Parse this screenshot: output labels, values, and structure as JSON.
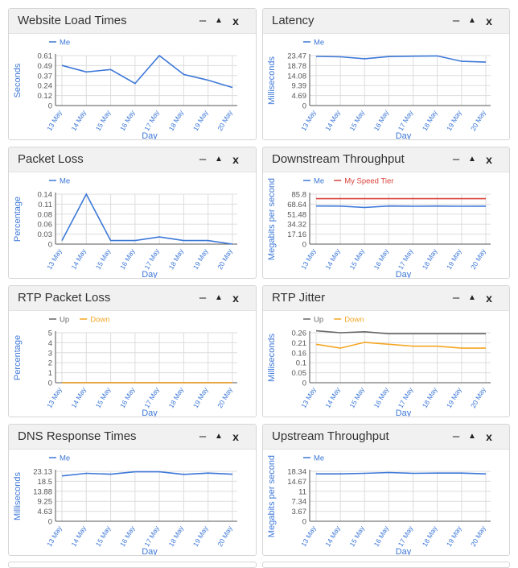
{
  "controls": {
    "minimize": "–",
    "expand": "▲",
    "close": "x"
  },
  "colors": {
    "blue": "#3d78d8",
    "red": "#d9433b",
    "gray": "#666666",
    "orange": "#f5a623",
    "grid": "#dddddd",
    "axis": "#555555",
    "label": "#3d78d8"
  },
  "panels": [
    {
      "id": "website-load-times",
      "title": "Website Load Times",
      "chart_data": {
        "type": "line",
        "title": "Website Load Times",
        "xlabel": "Day",
        "ylabel": "Seconds",
        "categories": [
          "13 May",
          "14 May",
          "15 May",
          "16 May",
          "17 May",
          "18 May",
          "19 May",
          "20 May"
        ],
        "yticks": [
          "0",
          "0.12",
          "0.24",
          "0.37",
          "0.49",
          "0.61"
        ],
        "ylim": [
          0,
          0.61
        ],
        "series": [
          {
            "name": "Me",
            "color": "#3d78d8",
            "values": [
              0.49,
              0.41,
              0.44,
              0.27,
              0.61,
              0.38,
              0.31,
              0.22
            ]
          }
        ]
      }
    },
    {
      "id": "latency",
      "title": "Latency",
      "chart_data": {
        "type": "line",
        "title": "Latency",
        "xlabel": "Day",
        "ylabel": "Milliseconds",
        "categories": [
          "13 May",
          "14 May",
          "15 May",
          "16 May",
          "17 May",
          "18 May",
          "19 May",
          "20 May"
        ],
        "yticks": [
          "0",
          "4.69",
          "9.39",
          "14.08",
          "18.78",
          "23.47"
        ],
        "ylim": [
          0,
          23.47
        ],
        "series": [
          {
            "name": "Me",
            "color": "#3d78d8",
            "values": [
              23.1,
              22.9,
              22.0,
              23.0,
              23.2,
              23.3,
              20.8,
              20.4
            ]
          }
        ]
      }
    },
    {
      "id": "packet-loss",
      "title": "Packet Loss",
      "chart_data": {
        "type": "line",
        "title": "Packet Loss",
        "xlabel": "Day",
        "ylabel": "Percentage",
        "categories": [
          "13 May",
          "14 May",
          "15 May",
          "16 May",
          "17 May",
          "18 May",
          "19 May",
          "20 May"
        ],
        "yticks": [
          "0",
          "0.03",
          "0.06",
          "0.08",
          "0.11",
          "0.14"
        ],
        "ylim": [
          0,
          0.14
        ],
        "series": [
          {
            "name": "Me",
            "color": "#3d78d8",
            "values": [
              0.01,
              0.14,
              0.01,
              0.01,
              0.02,
              0.01,
              0.01,
              0.0
            ]
          }
        ]
      }
    },
    {
      "id": "downstream-throughput",
      "title": "Downstream Throughput",
      "chart_data": {
        "type": "line",
        "title": "Downstream Throughput",
        "xlabel": "Day",
        "ylabel": "Megabits per second",
        "categories": [
          "13 May",
          "14 May",
          "15 May",
          "16 May",
          "17 May",
          "18 May",
          "19 May",
          "20 May"
        ],
        "yticks": [
          "0",
          "17.16",
          "34.32",
          "51.48",
          "68.64",
          "85.8"
        ],
        "ylim": [
          0,
          85.8
        ],
        "series": [
          {
            "name": "Me",
            "color": "#3d78d8",
            "values": [
              65.5,
              65.3,
              63.0,
              65.5,
              65.0,
              65.3,
              65.0,
              65.2
            ]
          },
          {
            "name": "My Speed Tier",
            "color": "#d9433b",
            "values": [
              78,
              78,
              78,
              78,
              78,
              78,
              78,
              78
            ]
          }
        ]
      }
    },
    {
      "id": "rtp-packet-loss",
      "title": "RTP Packet Loss",
      "chart_data": {
        "type": "line",
        "title": "RTP Packet Loss",
        "xlabel": "Day",
        "ylabel": "Percentage",
        "categories": [
          "13 May",
          "14 May",
          "15 May",
          "16 May",
          "17 May",
          "18 May",
          "19 May",
          "20 May"
        ],
        "yticks": [
          "0",
          "1",
          "2",
          "3",
          "4",
          "5"
        ],
        "ylim": [
          0,
          5
        ],
        "series": [
          {
            "name": "Up",
            "color": "#666666",
            "values": [
              0,
              0,
              0,
              0,
              0,
              0,
              0,
              0
            ]
          },
          {
            "name": "Down",
            "color": "#f5a623",
            "values": [
              0,
              0,
              0,
              0,
              0,
              0,
              0,
              0
            ]
          }
        ]
      }
    },
    {
      "id": "rtp-jitter",
      "title": "RTP Jitter",
      "chart_data": {
        "type": "line",
        "title": "RTP Jitter",
        "xlabel": "Day",
        "ylabel": "Milliseconds",
        "categories": [
          "13 May",
          "14 May",
          "15 May",
          "16 May",
          "17 May",
          "18 May",
          "19 May",
          "20 May"
        ],
        "yticks": [
          "0",
          "0.05",
          "0.1",
          "0.16",
          "0.21",
          "0.26"
        ],
        "ylim": [
          0,
          0.26
        ],
        "series": [
          {
            "name": "Up",
            "color": "#666666",
            "values": [
              0.27,
              0.26,
              0.265,
              0.255,
              0.255,
              0.255,
              0.255,
              0.255
            ]
          },
          {
            "name": "Down",
            "color": "#f5a623",
            "values": [
              0.2,
              0.18,
              0.21,
              0.2,
              0.19,
              0.19,
              0.18,
              0.18
            ]
          }
        ]
      }
    },
    {
      "id": "dns-response-times",
      "title": "DNS Response Times",
      "chart_data": {
        "type": "line",
        "title": "DNS Response Times",
        "xlabel": "Day",
        "ylabel": "Milliseconds",
        "categories": [
          "13 May",
          "14 May",
          "15 May",
          "16 May",
          "17 May",
          "18 May",
          "19 May",
          "20 May"
        ],
        "yticks": [
          "0",
          "4.63",
          "9.25",
          "13.88",
          "18.5",
          "23.13"
        ],
        "ylim": [
          0,
          23.13
        ],
        "series": [
          {
            "name": "Me",
            "color": "#3d78d8",
            "values": [
              21.0,
              22.2,
              21.8,
              22.9,
              22.9,
              21.7,
              22.3,
              21.8
            ]
          }
        ]
      }
    },
    {
      "id": "upstream-throughput",
      "title": "Upstream Throughput",
      "chart_data": {
        "type": "line",
        "title": "Upstream Throughput",
        "xlabel": "Day",
        "ylabel": "Megabits per second",
        "categories": [
          "13 May",
          "14 May",
          "15 May",
          "16 May",
          "17 May",
          "18 May",
          "19 May",
          "20 May"
        ],
        "yticks": [
          "0",
          "3.67",
          "7.34",
          "11",
          "14.67",
          "18.34"
        ],
        "ylim": [
          0,
          18.34
        ],
        "series": [
          {
            "name": "Me",
            "color": "#3d78d8",
            "values": [
              17.4,
              17.4,
              17.6,
              17.9,
              17.6,
              17.7,
              17.7,
              17.4
            ]
          }
        ]
      }
    }
  ]
}
